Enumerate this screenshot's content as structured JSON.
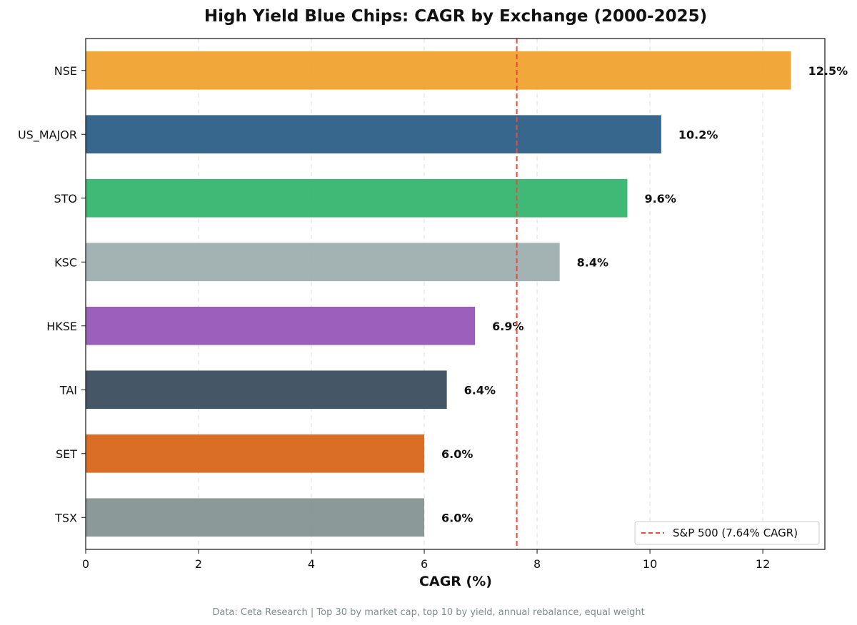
{
  "chart_data": {
    "type": "bar",
    "orientation": "horizontal",
    "title": "High Yield Blue Chips: CAGR by Exchange (2000-2025)",
    "xlabel": "CAGR (%)",
    "ylabel": "",
    "xlim": [
      0,
      13.1
    ],
    "xticks": [
      0,
      2,
      4,
      6,
      8,
      10,
      12
    ],
    "grid": "vertical dashed",
    "categories": [
      "NSE",
      "US_MAJOR",
      "STO",
      "KSC",
      "HKSE",
      "TAI",
      "SET",
      "TSX"
    ],
    "values": [
      12.5,
      10.2,
      9.6,
      8.4,
      6.9,
      6.4,
      6.0,
      6.0
    ],
    "value_labels": [
      "12.5%",
      "10.2%",
      "9.6%",
      "8.4%",
      "6.9%",
      "6.4%",
      "6.0%",
      "6.0%"
    ],
    "bar_colors": [
      "#f0a22e",
      "#2c5f86",
      "#35b56e",
      "#9eaeae",
      "#9557b8",
      "#3b4d5f",
      "#d9661a",
      "#869494"
    ],
    "reference_line": {
      "value": 7.64,
      "label": "S&P 500 (7.64% CAGR)",
      "color": "#e74c3c",
      "style": "dashed"
    },
    "legend_placement": "bottom-right",
    "footnote": "Data: Ceta Research | Top 30 by market cap, top 10 by yield, annual rebalance, equal weight"
  }
}
